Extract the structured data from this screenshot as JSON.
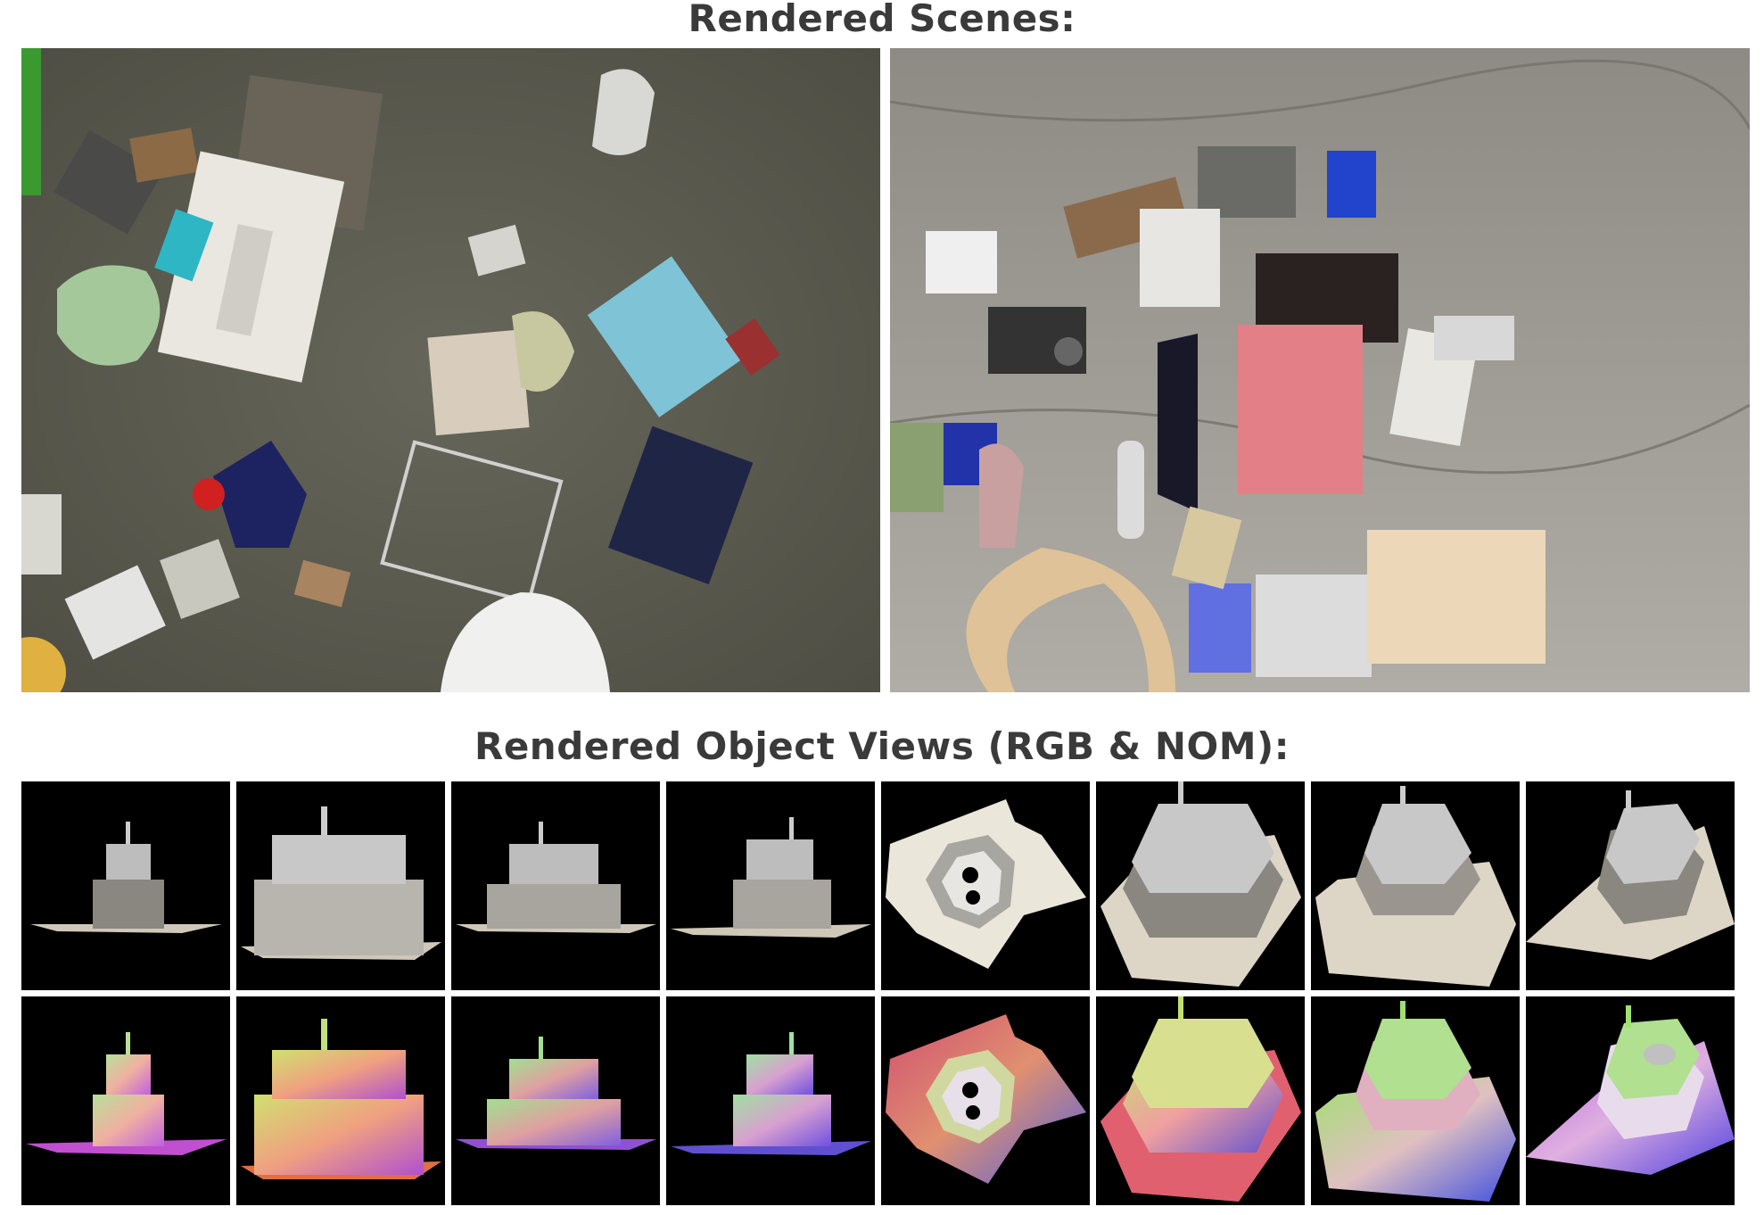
{
  "headings": {
    "scenes": "Rendered Scenes:",
    "object_views": "Rendered Object Views (RGB & NOM):"
  },
  "colors": {
    "heading_text": "#3a3a3a",
    "tile_background": "#000000",
    "scene_a_floor": "#5c5c4e",
    "scene_b_floor": "#9a9690"
  },
  "views": {
    "rgb_row_count": 8,
    "nom_row_count": 8
  }
}
